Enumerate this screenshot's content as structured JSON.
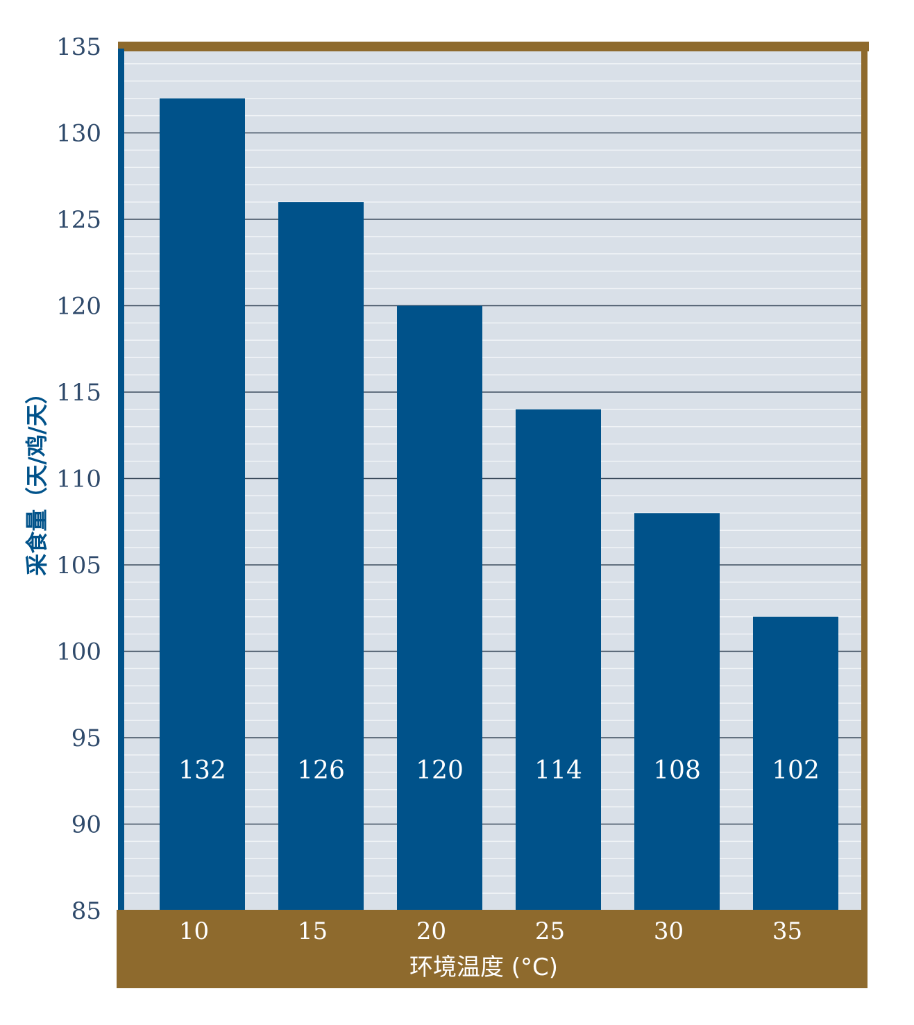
{
  "chart_data": {
    "type": "bar",
    "categories": [
      "10",
      "15",
      "20",
      "25",
      "30",
      "35"
    ],
    "values": [
      132,
      126,
      120,
      114,
      108,
      102
    ],
    "value_labels": [
      "132",
      "126",
      "120",
      "114",
      "108",
      "102"
    ],
    "xlabel": "环境温度 (°C)",
    "ylabel": "采食量（天/鸡/天）",
    "ylim": [
      85,
      135
    ],
    "yticks": [
      "85",
      "90",
      "95",
      "100",
      "105",
      "110",
      "115",
      "120",
      "125",
      "130",
      "135"
    ],
    "grid": true,
    "legend": "none",
    "colors": {
      "bar": "#00528a",
      "plot_background": "#d9e0e8",
      "frame": "#8e6a2d",
      "left_axis": "#00528a",
      "grid_major": "#3b4b5c",
      "grid_minor": "#f1f4f7"
    }
  }
}
